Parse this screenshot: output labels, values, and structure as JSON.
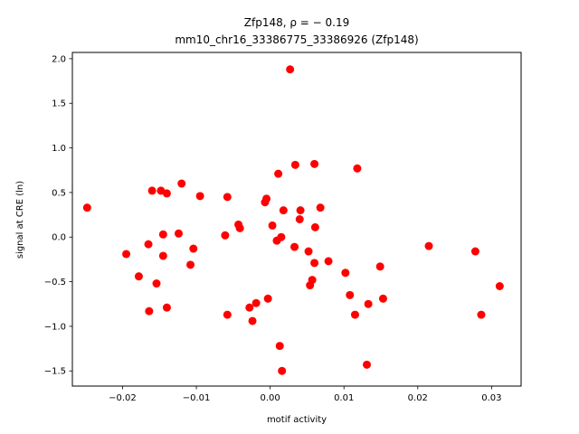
{
  "chart_data": {
    "type": "scatter",
    "title_line1": "Zfp148, ρ = − 0.19",
    "title_line2": "mm10_chr16_33386775_33386926 (Zfp148)",
    "xlabel": "motif activity",
    "ylabel": "signal at CRE (ln)",
    "xlim": [
      -0.0268,
      0.034
    ],
    "ylim": [
      -1.67,
      2.07
    ],
    "xticks": [
      -0.02,
      -0.01,
      0.0,
      0.01,
      0.02,
      0.03
    ],
    "xtick_labels": [
      "−0.02",
      "−0.01",
      "0.00",
      "0.01",
      "0.02",
      "0.03"
    ],
    "yticks": [
      -1.5,
      -1.0,
      -0.5,
      0.0,
      0.5,
      1.0,
      1.5,
      2.0
    ],
    "ytick_labels": [
      "−1.5",
      "−1.0",
      "−0.5",
      "0.0",
      "0.5",
      "1.0",
      "1.5",
      "2.0"
    ],
    "marker_color": "#ff0000",
    "grid": false,
    "points": [
      {
        "x": -0.0248,
        "y": 0.33
      },
      {
        "x": -0.0195,
        "y": -0.19
      },
      {
        "x": -0.0178,
        "y": -0.44
      },
      {
        "x": -0.0165,
        "y": -0.08
      },
      {
        "x": -0.0164,
        "y": -0.83
      },
      {
        "x": -0.016,
        "y": 0.52
      },
      {
        "x": -0.0154,
        "y": -0.52
      },
      {
        "x": -0.0148,
        "y": 0.52
      },
      {
        "x": -0.0145,
        "y": 0.03
      },
      {
        "x": -0.0145,
        "y": -0.21
      },
      {
        "x": -0.014,
        "y": 0.49
      },
      {
        "x": -0.014,
        "y": -0.79
      },
      {
        "x": -0.0124,
        "y": 0.04
      },
      {
        "x": -0.012,
        "y": 0.6
      },
      {
        "x": -0.0108,
        "y": -0.31
      },
      {
        "x": -0.0104,
        "y": -0.13
      },
      {
        "x": -0.0095,
        "y": 0.46
      },
      {
        "x": -0.0061,
        "y": 0.02
      },
      {
        "x": -0.0058,
        "y": 0.45
      },
      {
        "x": -0.0058,
        "y": -0.87
      },
      {
        "x": -0.0043,
        "y": 0.14
      },
      {
        "x": -0.0041,
        "y": 0.1
      },
      {
        "x": -0.0028,
        "y": -0.79
      },
      {
        "x": -0.0024,
        "y": -0.94
      },
      {
        "x": -0.0019,
        "y": -0.74
      },
      {
        "x": -0.0007,
        "y": 0.39
      },
      {
        "x": -0.0005,
        "y": 0.43
      },
      {
        "x": -0.0003,
        "y": -0.69
      },
      {
        "x": 0.0003,
        "y": 0.13
      },
      {
        "x": 0.0009,
        "y": -0.04
      },
      {
        "x": 0.0011,
        "y": 0.71
      },
      {
        "x": 0.0013,
        "y": -1.22
      },
      {
        "x": 0.0015,
        "y": 0.0
      },
      {
        "x": 0.0016,
        "y": -1.5
      },
      {
        "x": 0.0018,
        "y": 0.3
      },
      {
        "x": 0.0027,
        "y": 1.88
      },
      {
        "x": 0.0033,
        "y": -0.11
      },
      {
        "x": 0.0034,
        "y": 0.81
      },
      {
        "x": 0.004,
        "y": 0.2
      },
      {
        "x": 0.0041,
        "y": 0.3
      },
      {
        "x": 0.0052,
        "y": -0.16
      },
      {
        "x": 0.0054,
        "y": -0.54
      },
      {
        "x": 0.0057,
        "y": -0.48
      },
      {
        "x": 0.006,
        "y": 0.82
      },
      {
        "x": 0.006,
        "y": -0.29
      },
      {
        "x": 0.0061,
        "y": 0.11
      },
      {
        "x": 0.0068,
        "y": 0.33
      },
      {
        "x": 0.0079,
        "y": -0.27
      },
      {
        "x": 0.0102,
        "y": -0.4
      },
      {
        "x": 0.0108,
        "y": -0.65
      },
      {
        "x": 0.0115,
        "y": -0.87
      },
      {
        "x": 0.0118,
        "y": 0.77
      },
      {
        "x": 0.0131,
        "y": -1.43
      },
      {
        "x": 0.0133,
        "y": -0.75
      },
      {
        "x": 0.0149,
        "y": -0.33
      },
      {
        "x": 0.0153,
        "y": -0.69
      },
      {
        "x": 0.0215,
        "y": -0.1
      },
      {
        "x": 0.0278,
        "y": -0.16
      },
      {
        "x": 0.0286,
        "y": -0.87
      },
      {
        "x": 0.0311,
        "y": -0.55
      }
    ]
  }
}
